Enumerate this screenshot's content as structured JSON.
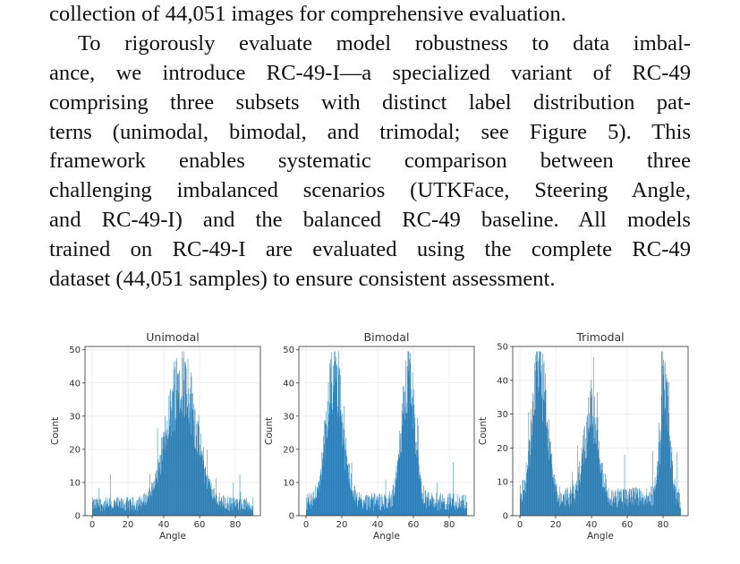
{
  "paragraph": {
    "lines": [
      "collection of 44,051 images for comprehensive evaluation.",
      "To rigorously evaluate model robustness to data imbal-",
      "ance, we introduce RC-49-I—a specialized variant of RC-49",
      "comprising three subsets with distinct label distribution pat-",
      "terns (unimodal, bimodal, and trimodal; see Figure 5). This",
      "framework enables systematic comparison between three",
      "challenging imbalanced scenarios (UTKFace, Steering Angle,",
      "and RC-49-I) and the balanced RC-49 baseline. All models",
      "trained on RC-49-I are evaluated using the complete RC-49",
      "dataset (44,051 samples) to ensure consistent assessment."
    ]
  },
  "chart_data": [
    {
      "type": "bar",
      "title": "Unimodal",
      "xlabel": "Angle",
      "ylabel": "Count",
      "xlim": [
        -4,
        94
      ],
      "ylim": [
        0,
        51
      ],
      "xticks": [
        0,
        20,
        40,
        60,
        80
      ],
      "yticks": [
        0,
        10,
        20,
        30,
        40,
        50
      ],
      "color": "#1f77b4",
      "grid": true,
      "peaks": [
        {
          "center": 50,
          "height": 49,
          "width": 8
        }
      ],
      "baseline": 4
    },
    {
      "type": "bar",
      "title": "Bimodal",
      "xlabel": "Angle",
      "ylabel": "Count",
      "xlim": [
        -4,
        94
      ],
      "ylim": [
        0,
        51
      ],
      "xticks": [
        0,
        20,
        40,
        60,
        80
      ],
      "yticks": [
        0,
        10,
        20,
        30,
        40,
        50
      ],
      "color": "#1f77b4",
      "grid": true,
      "peaks": [
        {
          "center": 16,
          "height": 49,
          "width": 4.5
        },
        {
          "center": 57,
          "height": 48,
          "width": 3.5
        }
      ],
      "baseline": 5
    },
    {
      "type": "bar",
      "title": "Trimodal",
      "xlabel": "Angle",
      "ylabel": "Count",
      "xlim": [
        -4,
        94
      ],
      "ylim": [
        0,
        50
      ],
      "xticks": [
        0,
        20,
        40,
        60,
        80
      ],
      "yticks": [
        0,
        10,
        20,
        30,
        40,
        50
      ],
      "color": "#1f77b4",
      "grid": true,
      "peaks": [
        {
          "center": 11,
          "height": 48,
          "width": 4
        },
        {
          "center": 40,
          "height": 32,
          "width": 4
        },
        {
          "center": 81,
          "height": 43,
          "width": 2.5
        }
      ],
      "baseline": 6
    }
  ]
}
